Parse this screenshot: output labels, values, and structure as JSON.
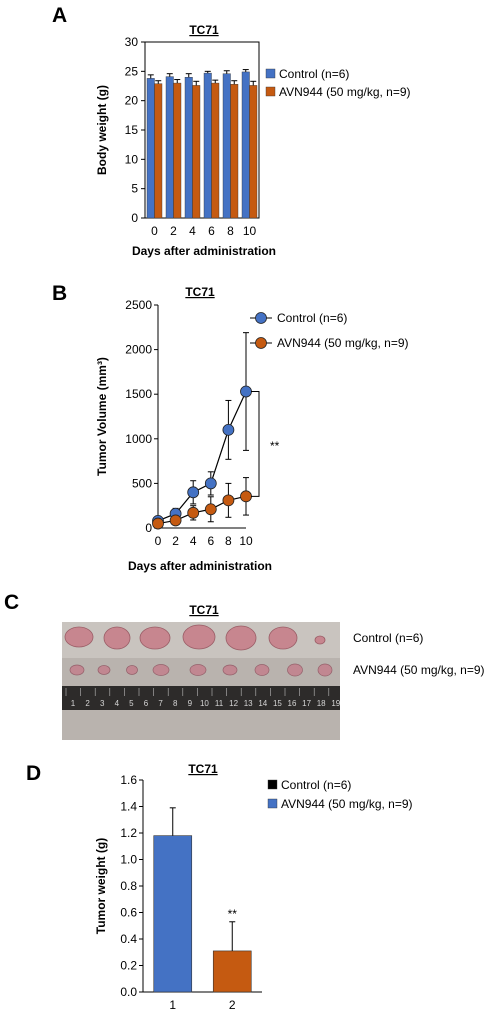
{
  "panels": {
    "A": "A",
    "B": "B",
    "C": "C",
    "D": "D"
  },
  "photo": {
    "title": "TC71",
    "row1_label": "Control (n=6)",
    "row2_label": "AVN944 (50 mg/kg, n=9)",
    "ruler_numbers": [
      "1",
      "2",
      "3",
      "4",
      "5",
      "6",
      "7",
      "8",
      "9",
      "10",
      "11",
      "12",
      "13",
      "14",
      "15",
      "16",
      "17",
      "18",
      "19"
    ]
  },
  "colors": {
    "control_blue": "#4472C4",
    "avn_orange": "#C55A11",
    "control_black": "#000000"
  },
  "chart_data": [
    {
      "id": "A",
      "type": "bar",
      "title": "TC71",
      "xlabel": "Days after administration",
      "ylabel": "Body weight (g)",
      "categories": [
        "0",
        "2",
        "4",
        "6",
        "8",
        "10"
      ],
      "ylim": [
        0,
        30
      ],
      "yticks": [
        "0",
        "5",
        "10",
        "15",
        "20",
        "25",
        "30"
      ],
      "legend": "right",
      "series": [
        {
          "name": "Control (n=6)",
          "color": "#4472C4",
          "values": [
            23.8,
            24.1,
            24.0,
            24.7,
            24.6,
            24.9
          ],
          "errors": [
            0.6,
            0.5,
            0.6,
            0.3,
            0.5,
            0.4
          ]
        },
        {
          "name": "AVN944 (50 mg/kg, n=9)",
          "color": "#C55A11",
          "values": [
            22.9,
            23.0,
            22.6,
            23.0,
            22.8,
            22.6
          ],
          "errors": [
            0.5,
            0.6,
            0.7,
            0.5,
            0.6,
            0.7
          ]
        }
      ]
    },
    {
      "id": "B",
      "type": "line",
      "title": "TC71",
      "xlabel": "Days after administration",
      "ylabel": "Tumor Volume (mm³)",
      "x": [
        "0",
        "2",
        "4",
        "6",
        "8",
        "10"
      ],
      "ylim": [
        0,
        2500
      ],
      "yticks": [
        "0",
        "500",
        "1000",
        "1500",
        "2000",
        "2500"
      ],
      "legend": "top-right",
      "annotation": "**",
      "series": [
        {
          "name": "Control (n=6)",
          "color": "#4472C4",
          "values": [
            80,
            160,
            400,
            500,
            1100,
            1530
          ],
          "errors": [
            50,
            60,
            130,
            130,
            330,
            660
          ]
        },
        {
          "name": "AVN944 (50 mg/kg, n=9)",
          "color": "#C55A11",
          "values": [
            50,
            85,
            170,
            210,
            310,
            355
          ],
          "errors": [
            25,
            40,
            80,
            140,
            190,
            210
          ]
        }
      ]
    },
    {
      "id": "D",
      "type": "bar",
      "title": "TC71",
      "xlabel": "",
      "ylabel": "Tumor weight (g)",
      "categories": [
        "1",
        "2"
      ],
      "ylim": [
        0,
        1.6
      ],
      "yticks": [
        "0.0",
        "0.2",
        "0.4",
        "0.6",
        "0.8",
        "1.0",
        "1.2",
        "1.4",
        "1.6"
      ],
      "legend": "right",
      "annotation": "**",
      "values": [
        1.18,
        0.31
      ],
      "errors": [
        0.21,
        0.22
      ],
      "bar_colors": [
        "#4472C4",
        "#C55A11"
      ],
      "legend_entries": [
        {
          "name": "Control (n=6)",
          "color": "#000000"
        },
        {
          "name": "AVN944 (50 mg/kg, n=9)",
          "color": "#4472C4"
        }
      ]
    }
  ]
}
